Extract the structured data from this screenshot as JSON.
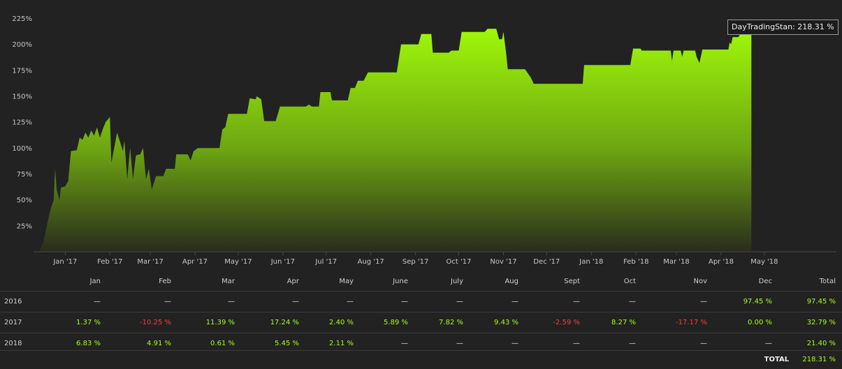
{
  "chart_data": {
    "type": "area",
    "ylim": [
      0,
      230
    ],
    "y_ticks": [
      "25%",
      "50%",
      "75%",
      "100%",
      "125%",
      "150%",
      "175%",
      "200%",
      "225%"
    ],
    "y_tick_values": [
      25,
      50,
      75,
      100,
      125,
      150,
      175,
      200,
      225
    ],
    "x_ticks": [
      "Jan '17",
      "Feb '17",
      "Mar '17",
      "Apr '17",
      "May '17",
      "Jun '17",
      "Jul '17",
      "Aug '17",
      "Sep '17",
      "Oct '17",
      "Nov '17",
      "Dec '17",
      "Jan '18",
      "Feb '18",
      "Mar '18",
      "Apr '18",
      "May '18"
    ],
    "x_tick_dates": [
      "2017-01-01",
      "2017-02-01",
      "2017-03-01",
      "2017-04-01",
      "2017-05-01",
      "2017-06-01",
      "2017-07-01",
      "2017-08-01",
      "2017-09-01",
      "2017-10-01",
      "2017-11-01",
      "2017-12-01",
      "2018-01-01",
      "2018-02-01",
      "2018-03-01",
      "2018-04-01",
      "2018-05-01"
    ],
    "x_range": [
      "2016-12-10",
      "2018-06-20"
    ],
    "series": [
      {
        "name": "DayTradingStan",
        "color": "#9ef50a",
        "points": [
          [
            "2016-12-14",
            0
          ],
          [
            "2016-12-17",
            10
          ],
          [
            "2016-12-20",
            30
          ],
          [
            "2016-12-22",
            42
          ],
          [
            "2016-12-24",
            50
          ],
          [
            "2016-12-25",
            80
          ],
          [
            "2016-12-26",
            60
          ],
          [
            "2016-12-28",
            50
          ],
          [
            "2016-12-29",
            62
          ],
          [
            "2017-01-01",
            63
          ],
          [
            "2017-01-03",
            68
          ],
          [
            "2017-01-05",
            97
          ],
          [
            "2017-01-09",
            98
          ],
          [
            "2017-01-11",
            110
          ],
          [
            "2017-01-13",
            108
          ],
          [
            "2017-01-15",
            115
          ],
          [
            "2017-01-17",
            110
          ],
          [
            "2017-01-19",
            117
          ],
          [
            "2017-01-21",
            112
          ],
          [
            "2017-01-23",
            120
          ],
          [
            "2017-01-25",
            110
          ],
          [
            "2017-01-27",
            118
          ],
          [
            "2017-01-29",
            125
          ],
          [
            "2017-02-01",
            130
          ],
          [
            "2017-02-02",
            86
          ],
          [
            "2017-02-06",
            115
          ],
          [
            "2017-02-10",
            97
          ],
          [
            "2017-02-11",
            107
          ],
          [
            "2017-02-13",
            70
          ],
          [
            "2017-02-15",
            100
          ],
          [
            "2017-02-17",
            70
          ],
          [
            "2017-02-19",
            93
          ],
          [
            "2017-02-22",
            94
          ],
          [
            "2017-02-24",
            100
          ],
          [
            "2017-02-26",
            70
          ],
          [
            "2017-02-28",
            80
          ],
          [
            "2017-03-02",
            60
          ],
          [
            "2017-03-05",
            73
          ],
          [
            "2017-03-10",
            73
          ],
          [
            "2017-03-12",
            80
          ],
          [
            "2017-03-18",
            80
          ],
          [
            "2017-03-19",
            94
          ],
          [
            "2017-03-27",
            94
          ],
          [
            "2017-03-29",
            88
          ],
          [
            "2017-03-31",
            97
          ],
          [
            "2017-04-03",
            100
          ],
          [
            "2017-04-18",
            100
          ],
          [
            "2017-04-20",
            118
          ],
          [
            "2017-04-22",
            120
          ],
          [
            "2017-04-24",
            133
          ],
          [
            "2017-05-07",
            133
          ],
          [
            "2017-05-09",
            148
          ],
          [
            "2017-05-13",
            147
          ],
          [
            "2017-05-14",
            150
          ],
          [
            "2017-05-17",
            147
          ],
          [
            "2017-05-19",
            126
          ],
          [
            "2017-05-27",
            126
          ],
          [
            "2017-05-30",
            140
          ],
          [
            "2017-06-17",
            140
          ],
          [
            "2017-06-19",
            142
          ],
          [
            "2017-06-21",
            140
          ],
          [
            "2017-06-26",
            140
          ],
          [
            "2017-06-27",
            154
          ],
          [
            "2017-07-04",
            154
          ],
          [
            "2017-07-05",
            146
          ],
          [
            "2017-07-16",
            146
          ],
          [
            "2017-07-18",
            158
          ],
          [
            "2017-07-21",
            158
          ],
          [
            "2017-07-23",
            165
          ],
          [
            "2017-07-27",
            165
          ],
          [
            "2017-07-30",
            173
          ],
          [
            "2017-08-19",
            173
          ],
          [
            "2017-08-22",
            200
          ],
          [
            "2017-09-03",
            200
          ],
          [
            "2017-09-05",
            210
          ],
          [
            "2017-09-12",
            210
          ],
          [
            "2017-09-13",
            192
          ],
          [
            "2017-09-24",
            192
          ],
          [
            "2017-09-26",
            194
          ],
          [
            "2017-10-01",
            194
          ],
          [
            "2017-10-03",
            212
          ],
          [
            "2017-10-19",
            212
          ],
          [
            "2017-10-21",
            215
          ],
          [
            "2017-10-27",
            215
          ],
          [
            "2017-10-29",
            205
          ],
          [
            "2017-10-31",
            205
          ],
          [
            "2017-11-01",
            212
          ],
          [
            "2017-11-03",
            190
          ],
          [
            "2017-11-04",
            176
          ],
          [
            "2017-11-16",
            176
          ],
          [
            "2017-11-20",
            168
          ],
          [
            "2017-11-22",
            162
          ],
          [
            "2017-12-26",
            162
          ],
          [
            "2017-12-27",
            180
          ],
          [
            "2018-01-28",
            180
          ],
          [
            "2018-01-30",
            196
          ],
          [
            "2018-02-04",
            196
          ],
          [
            "2018-02-05",
            194
          ],
          [
            "2018-02-25",
            194
          ],
          [
            "2018-02-26",
            184
          ],
          [
            "2018-02-27",
            194
          ],
          [
            "2018-03-04",
            194
          ],
          [
            "2018-03-05",
            188
          ],
          [
            "2018-03-06",
            194
          ],
          [
            "2018-03-14",
            194
          ],
          [
            "2018-03-15",
            188
          ],
          [
            "2018-03-17",
            182
          ],
          [
            "2018-03-19",
            195
          ],
          [
            "2018-04-06",
            195
          ],
          [
            "2018-04-07",
            202
          ],
          [
            "2018-04-08",
            200
          ],
          [
            "2018-04-09",
            207
          ],
          [
            "2018-04-13",
            207
          ],
          [
            "2018-04-15",
            212
          ],
          [
            "2018-04-20",
            212
          ],
          [
            "2018-04-22",
            218.31
          ]
        ]
      }
    ]
  },
  "tooltip": {
    "label": "DayTradingStan: 218.31 %"
  },
  "table": {
    "headers": [
      "",
      "Jan",
      "Feb",
      "Mar",
      "Apr",
      "May",
      "June",
      "July",
      "Aug",
      "Sept",
      "Oct",
      "Nov",
      "Dec",
      "Total"
    ],
    "rows": [
      {
        "year": "2016",
        "cells": [
          "—",
          "—",
          "—",
          "—",
          "—",
          "—",
          "—",
          "—",
          "—",
          "—",
          "—",
          "97.45 %"
        ],
        "total": "97.45 %"
      },
      {
        "year": "2017",
        "cells": [
          "1.37 %",
          "-10.25 %",
          "11.39 %",
          "17.24 %",
          "2.40 %",
          "5.89 %",
          "7.82 %",
          "9.43 %",
          "-2.59 %",
          "8.27 %",
          "-17.17 %",
          "0.00 %"
        ],
        "total": "32.79 %"
      },
      {
        "year": "2018",
        "cells": [
          "6.83 %",
          "4.91 %",
          "0.61 %",
          "5.45 %",
          "2.11 %",
          "—",
          "—",
          "—",
          "—",
          "—",
          "—",
          "—"
        ],
        "total": "21.40 %"
      }
    ],
    "grand_total_label": "TOTAL",
    "grand_total_value": "218.31 %"
  },
  "colors": {
    "positive": "#a8ff1a",
    "negative": "#ff3b3b",
    "area_top": "#a0fa0a",
    "area_bottom": "#2a2a1e"
  }
}
